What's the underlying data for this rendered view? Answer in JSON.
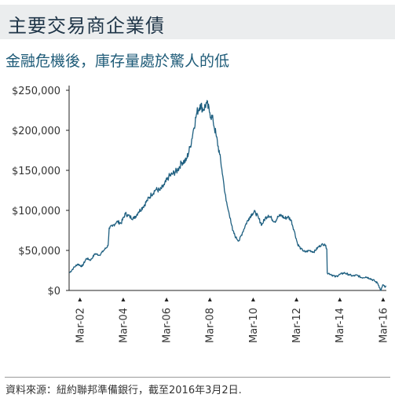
{
  "header": {
    "title": "主要交易商企業債",
    "subtitle": "金融危機後，庫存量處於驚人的低"
  },
  "footer": {
    "source": "資料來源：紐約聯邦準備銀行，截至2016年3月2日."
  },
  "colors": {
    "line": "#1e5f80",
    "axis": "#222222",
    "text": "#333333",
    "title_bg": "#ebedee"
  },
  "chart_data": {
    "type": "line",
    "title": "",
    "xlabel": "",
    "ylabel": "",
    "ylim": [
      0,
      250000
    ],
    "xlim": [
      2001.7,
      2016.35
    ],
    "grid": false,
    "legend": "none",
    "y_ticks": [
      {
        "value": 250000,
        "label": "$250,000"
      },
      {
        "value": 200000,
        "label": "$200,000"
      },
      {
        "value": 150000,
        "label": "$150,000"
      },
      {
        "value": 100000,
        "label": "$100,000"
      },
      {
        "value": 50000,
        "label": "$50,000"
      },
      {
        "value": 0,
        "label": "$0"
      }
    ],
    "x_ticks": [
      {
        "value": 2002.2,
        "label": "Mar-02"
      },
      {
        "value": 2004.2,
        "label": "Mar-04"
      },
      {
        "value": 2006.2,
        "label": "Mar-06"
      },
      {
        "value": 2008.2,
        "label": "Mar-08"
      },
      {
        "value": 2010.2,
        "label": "Mar-10"
      },
      {
        "value": 2012.2,
        "label": "Mar-12"
      },
      {
        "value": 2014.2,
        "label": "Mar-14"
      },
      {
        "value": 2016.2,
        "label": "Mar-16"
      }
    ],
    "series": [
      {
        "values": [
          [
            2001.72,
            22000
          ],
          [
            2001.9,
            28000
          ],
          [
            2002.1,
            33000
          ],
          [
            2002.3,
            30000
          ],
          [
            2002.5,
            40000
          ],
          [
            2002.7,
            38000
          ],
          [
            2002.9,
            46000
          ],
          [
            2003.1,
            44000
          ],
          [
            2003.3,
            50000
          ],
          [
            2003.5,
            56000
          ],
          [
            2003.55,
            78000
          ],
          [
            2003.7,
            80000
          ],
          [
            2003.9,
            86000
          ],
          [
            2004.1,
            84000
          ],
          [
            2004.3,
            96000
          ],
          [
            2004.5,
            92000
          ],
          [
            2004.7,
            90000
          ],
          [
            2004.9,
            98000
          ],
          [
            2005.1,
            104000
          ],
          [
            2005.3,
            112000
          ],
          [
            2005.5,
            120000
          ],
          [
            2005.7,
            126000
          ],
          [
            2005.9,
            125000
          ],
          [
            2006.1,
            132000
          ],
          [
            2006.3,
            142000
          ],
          [
            2006.5,
            146000
          ],
          [
            2006.7,
            150000
          ],
          [
            2006.9,
            160000
          ],
          [
            2007.1,
            162000
          ],
          [
            2007.3,
            180000
          ],
          [
            2007.45,
            202000
          ],
          [
            2007.6,
            222000
          ],
          [
            2007.75,
            232000
          ],
          [
            2007.9,
            226000
          ],
          [
            2008.05,
            234000
          ],
          [
            2008.2,
            222000
          ],
          [
            2008.35,
            212000
          ],
          [
            2008.5,
            192000
          ],
          [
            2008.65,
            170000
          ],
          [
            2008.75,
            152000
          ],
          [
            2008.85,
            132000
          ],
          [
            2008.95,
            112000
          ],
          [
            2009.05,
            100000
          ],
          [
            2009.15,
            90000
          ],
          [
            2009.25,
            75000
          ],
          [
            2009.4,
            66000
          ],
          [
            2009.55,
            62000
          ],
          [
            2009.7,
            72000
          ],
          [
            2009.85,
            82000
          ],
          [
            2010.0,
            90000
          ],
          [
            2010.15,
            96000
          ],
          [
            2010.3,
            98000
          ],
          [
            2010.45,
            90000
          ],
          [
            2010.6,
            82000
          ],
          [
            2010.75,
            90000
          ],
          [
            2010.9,
            94000
          ],
          [
            2011.05,
            90000
          ],
          [
            2011.2,
            86000
          ],
          [
            2011.35,
            92000
          ],
          [
            2011.5,
            94000
          ],
          [
            2011.65,
            90000
          ],
          [
            2011.8,
            92000
          ],
          [
            2011.95,
            88000
          ],
          [
            2012.1,
            74000
          ],
          [
            2012.25,
            58000
          ],
          [
            2012.4,
            52000
          ],
          [
            2012.6,
            48000
          ],
          [
            2012.8,
            50000
          ],
          [
            2013.0,
            48000
          ],
          [
            2013.2,
            54000
          ],
          [
            2013.35,
            57000
          ],
          [
            2013.5,
            58000
          ],
          [
            2013.6,
            52000
          ],
          [
            2013.62,
            22000
          ],
          [
            2013.8,
            20000
          ],
          [
            2014.0,
            17000
          ],
          [
            2014.2,
            20000
          ],
          [
            2014.4,
            22000
          ],
          [
            2014.6,
            20000
          ],
          [
            2014.8,
            18000
          ],
          [
            2015.0,
            19000
          ],
          [
            2015.2,
            16000
          ],
          [
            2015.4,
            17000
          ],
          [
            2015.6,
            15000
          ],
          [
            2015.8,
            12000
          ],
          [
            2015.95,
            9000
          ],
          [
            2016.05,
            3000
          ],
          [
            2016.1,
            0
          ],
          [
            2016.18,
            7000
          ],
          [
            2016.3,
            4000
          ],
          [
            2016.33,
            6000
          ]
        ]
      }
    ]
  }
}
